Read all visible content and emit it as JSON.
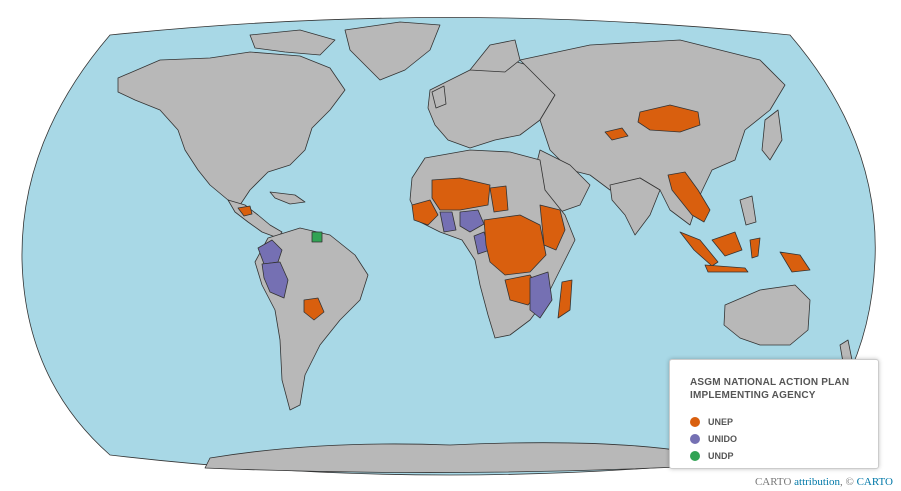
{
  "legend": {
    "title_line1": "ASGM NATIONAL ACTION PLAN",
    "title_line2": "IMPLEMENTING AGENCY",
    "items": [
      {
        "label": "UNEP",
        "color": "#d95f0e"
      },
      {
        "label": "UNIDO",
        "color": "#7570b3"
      },
      {
        "label": "UNDP",
        "color": "#31a354"
      }
    ]
  },
  "attribution": {
    "brand": "CARTO",
    "link_text": "attribution",
    "separator": ", ",
    "copyright": "©",
    "copyright_link": "CARTO"
  },
  "colors": {
    "ocean": "#a8d8e6",
    "land": "#b8b8b8",
    "border": "#333333"
  },
  "agencies_by_country": {
    "UNEP": [
      "Mongolia",
      "Kyrgyzstan",
      "Myanmar",
      "Thailand",
      "Laos",
      "Cambodia",
      "Indonesia",
      "Papua New Guinea",
      "Guatemala",
      "Honduras",
      "Nicaragua",
      "Paraguay",
      "Senegal",
      "Guinea",
      "Sierra Leone",
      "Mali",
      "Burkina Faso",
      "Niger",
      "Chad",
      "Central African Republic",
      "Democratic Republic of the Congo",
      "Republic of the Congo",
      "Gabon",
      "Uganda",
      "Kenya",
      "Tanzania",
      "Zambia",
      "Zimbabwe",
      "Malawi",
      "Madagascar",
      "Eswatini",
      "Ethiopia"
    ],
    "UNIDO": [
      "Peru",
      "Ecuador",
      "Colombia",
      "Ghana",
      "Nigeria",
      "Cameroon",
      "Mozambique",
      "Côte d'Ivoire"
    ],
    "UNDP": [
      "Suriname"
    ]
  }
}
